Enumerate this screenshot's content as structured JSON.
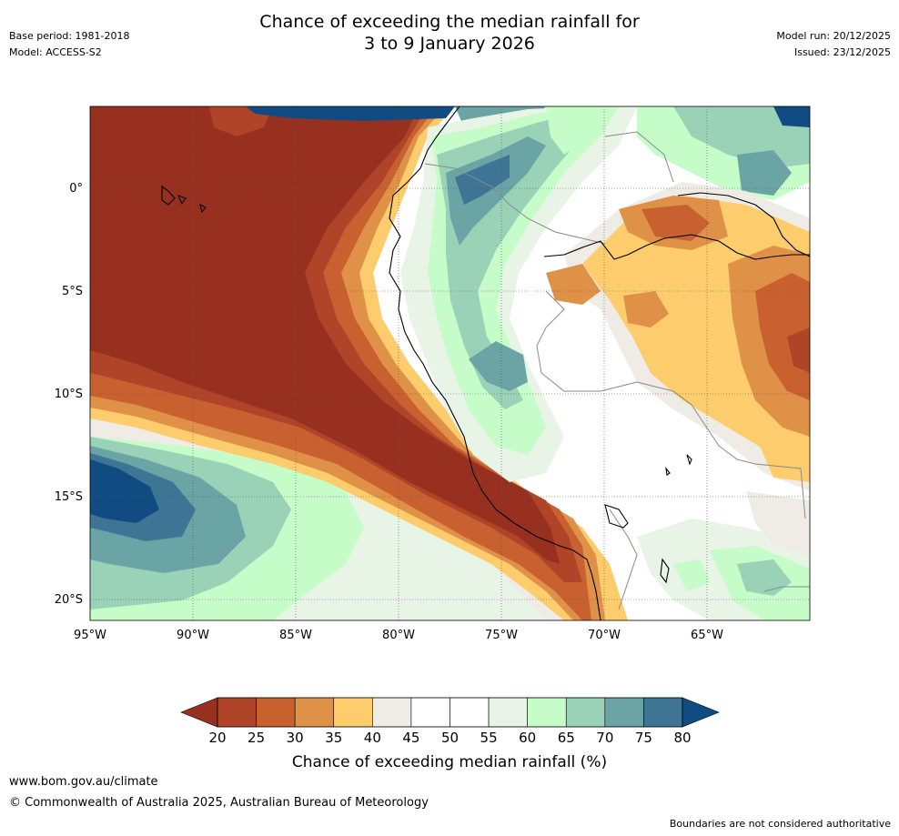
{
  "title_line1": "Chance of exceeding the median rainfall for",
  "title_line2": "3 to 9 January 2026",
  "base_period": "Base period: 1981-2018",
  "model": "Model: ACCESS-S2",
  "model_run": "Model run: 20/12/2025",
  "issued": "Issued: 23/12/2025",
  "lon_labels": [
    "95°W",
    "90°W",
    "85°W",
    "80°W",
    "75°W",
    "70°W",
    "65°W"
  ],
  "lat_labels": [
    "0°",
    "5°S",
    "10°S",
    "15°S",
    "20°S"
  ],
  "legend": {
    "ticks": [
      "20",
      "25",
      "30",
      "35",
      "40",
      "45",
      "50",
      "55",
      "60",
      "65",
      "70",
      "75",
      "80"
    ],
    "colors": [
      "#983020",
      "#b04428",
      "#c8602f",
      "#e09148",
      "#fdcc6c",
      "#efece6",
      "#ffffff",
      "#ffffff",
      "#e8f4e6",
      "#c6fcc8",
      "#9ad2b8",
      "#6aa4a4",
      "#3e7594",
      "#104c82"
    ],
    "label": "Chance of exceeding median rainfall (%)"
  },
  "website": "www.bom.gov.au/climate",
  "copyright": "© Commonwealth of Australia 2025, Australian Bureau of Meteorology",
  "disclaimer": "Boundaries are not considered authoritative"
}
